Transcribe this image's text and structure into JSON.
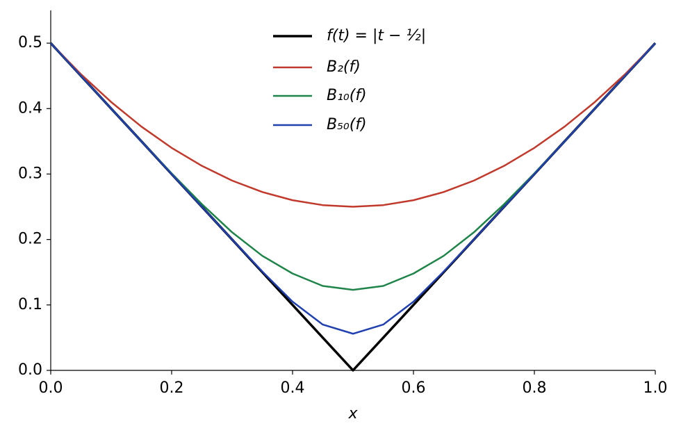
{
  "chart_data": {
    "type": "line",
    "x_label": "x",
    "x": [
      0,
      0.05,
      0.1,
      0.15,
      0.2,
      0.25,
      0.3,
      0.35,
      0.4,
      0.45,
      0.5,
      0.55,
      0.6,
      0.65,
      0.7,
      0.75,
      0.8,
      0.85,
      0.9,
      0.95,
      1
    ],
    "series": [
      {
        "name": "f(t) = |t − ½|",
        "color": "#000000",
        "width": 3.5,
        "values": [
          0.5,
          0.45,
          0.4,
          0.35,
          0.3,
          0.25,
          0.2,
          0.15,
          0.1,
          0.05,
          0,
          0.05,
          0.1,
          0.15,
          0.2,
          0.25,
          0.3,
          0.35,
          0.4,
          0.45,
          0.5
        ]
      },
      {
        "name": "B₂(f)",
        "color": "#c0392b",
        "width": 2.5,
        "values": [
          0.5,
          0.4525,
          0.41,
          0.3725,
          0.34,
          0.3125,
          0.29,
          0.2725,
          0.26,
          0.2525,
          0.25,
          0.2525,
          0.26,
          0.2725,
          0.29,
          0.3125,
          0.34,
          0.3725,
          0.41,
          0.4525,
          0.5
        ]
      },
      {
        "name": "B₁₀(f)",
        "color": "#1e8449",
        "width": 2.5,
        "values": [
          0.5,
          0.45,
          0.4,
          0.35,
          0.301,
          0.254,
          0.211,
          0.175,
          0.148,
          0.129,
          0.123,
          0.129,
          0.148,
          0.175,
          0.211,
          0.254,
          0.301,
          0.35,
          0.4,
          0.45,
          0.5
        ]
      },
      {
        "name": "B₅₀(f)",
        "color": "#2040b0",
        "width": 2.5,
        "values": [
          0.5,
          0.45,
          0.4,
          0.35,
          0.3,
          0.25,
          0.2,
          0.151,
          0.105,
          0.07,
          0.056,
          0.07,
          0.105,
          0.151,
          0.2,
          0.25,
          0.3,
          0.35,
          0.4,
          0.45,
          0.5
        ]
      }
    ],
    "xlim": [
      0,
      1
    ],
    "ylim": [
      0,
      0.55
    ],
    "xticks": [
      {
        "value": 0,
        "label": "0.0"
      },
      0.2,
      0.4,
      0.6,
      0.8,
      {
        "value": 1,
        "label": "1.0"
      }
    ],
    "yticks": [
      {
        "value": 0,
        "label": "0.0"
      },
      0.1,
      0.2,
      0.3,
      0.4,
      0.5
    ],
    "grid": false,
    "legend": "upper center"
  }
}
